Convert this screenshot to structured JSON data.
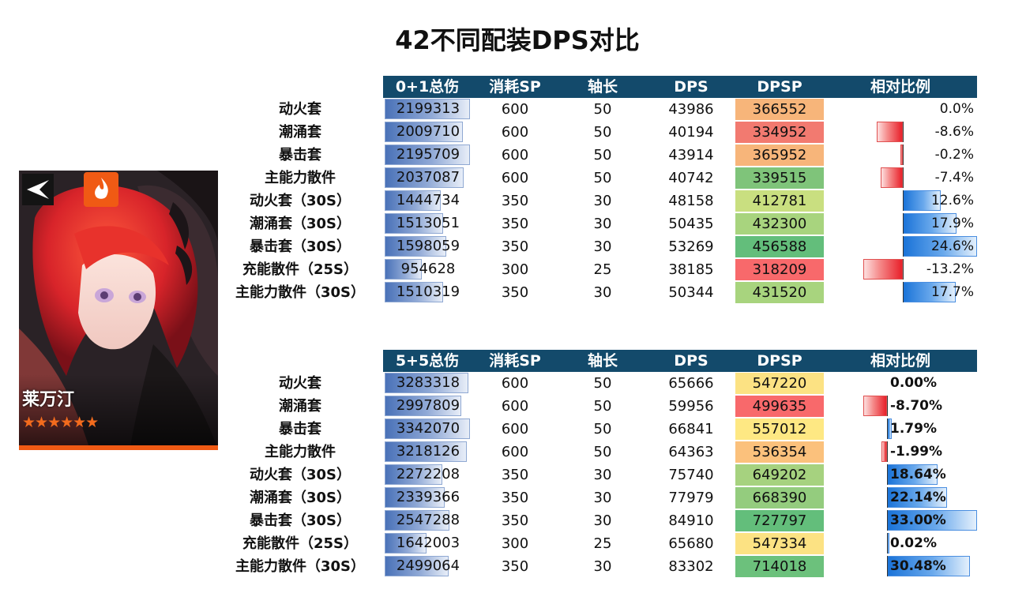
{
  "title": "42不同配装DPS对比",
  "character": {
    "name": "莱万汀",
    "stars": "★★★★★★"
  },
  "colors": {
    "header_bg": "#134a6b",
    "card_accent": "#f05a14"
  },
  "icons": {
    "class": "vanguard-class-icon",
    "element": "fire-element-icon"
  },
  "chart_data": [
    {
      "type": "table",
      "columns": [
        "0+1总伤",
        "消耗SP",
        "轴长",
        "DPS",
        "DPSP",
        "相对比例"
      ],
      "rows": [
        {
          "label": "动火套",
          "total": "2199313",
          "sp": "600",
          "axis": "50",
          "dps": "43986",
          "dpsp": "366552",
          "ratio": "0.0%",
          "ratio_value": 0.0,
          "dpsp_color": "#f7b57a"
        },
        {
          "label": "潮涌套",
          "total": "2009710",
          "sp": "600",
          "axis": "50",
          "dps": "40194",
          "dpsp": "334952",
          "ratio": "-8.6%",
          "ratio_value": -8.6,
          "dpsp_color": "#f27a70"
        },
        {
          "label": "暴击套",
          "total": "2195709",
          "sp": "600",
          "axis": "50",
          "dps": "43914",
          "dpsp": "365952",
          "ratio": "-0.2%",
          "ratio_value": -0.2,
          "dpsp_color": "#f7b57a"
        },
        {
          "label": "主能力散件",
          "total": "2037087",
          "sp": "600",
          "axis": "50",
          "dps": "40742",
          "dpsp": "339515",
          "ratio": "-7.4%",
          "ratio_value": -7.4,
          "dpsp_color": "#7fc47a"
        },
        {
          "label": "动火套（30S）",
          "total": "1444734",
          "sp": "350",
          "axis": "30",
          "dps": "48158",
          "dpsp": "412781",
          "ratio": "12.6%",
          "ratio_value": 12.6,
          "dpsp_color": "#c9df80"
        },
        {
          "label": "潮涌套（30S）",
          "total": "1513051",
          "sp": "350",
          "axis": "30",
          "dps": "50435",
          "dpsp": "432300",
          "ratio": "17.9%",
          "ratio_value": 17.9,
          "dpsp_color": "#a8d47e"
        },
        {
          "label": "暴击套（30S）",
          "total": "1598059",
          "sp": "350",
          "axis": "30",
          "dps": "53269",
          "dpsp": "456588",
          "ratio": "24.6%",
          "ratio_value": 24.6,
          "dpsp_color": "#63be7b"
        },
        {
          "label": "充能散件（25S）",
          "total": "954628",
          "sp": "300",
          "axis": "25",
          "dps": "38185",
          "dpsp": "318209",
          "ratio": "-13.2%",
          "ratio_value": -13.2,
          "dpsp_color": "#f8696b"
        },
        {
          "label": "主能力散件（30S）",
          "total": "1510319",
          "sp": "350",
          "axis": "30",
          "dps": "50344",
          "dpsp": "431520",
          "ratio": "17.7%",
          "ratio_value": 17.7,
          "dpsp_color": "#a8d47e"
        }
      ]
    },
    {
      "type": "table",
      "columns": [
        "5+5总伤",
        "消耗SP",
        "轴长",
        "DPS",
        "DPSP",
        "相对比例"
      ],
      "rows": [
        {
          "label": "动火套",
          "total": "3283318",
          "sp": "600",
          "axis": "50",
          "dps": "65666",
          "dpsp": "547220",
          "ratio": "0.00%",
          "ratio_value": 0.0,
          "dpsp_color": "#fce283"
        },
        {
          "label": "潮涌套",
          "total": "2997809",
          "sp": "600",
          "axis": "50",
          "dps": "59956",
          "dpsp": "499635",
          "ratio": "-8.70%",
          "ratio_value": -8.7,
          "dpsp_color": "#f8696b"
        },
        {
          "label": "暴击套",
          "total": "3342070",
          "sp": "600",
          "axis": "50",
          "dps": "66841",
          "dpsp": "557012",
          "ratio": "1.79%",
          "ratio_value": 1.79,
          "dpsp_color": "#fee883"
        },
        {
          "label": "主能力散件",
          "total": "3218126",
          "sp": "600",
          "axis": "50",
          "dps": "64363",
          "dpsp": "536354",
          "ratio": "-1.99%",
          "ratio_value": -1.99,
          "dpsp_color": "#fbc17c"
        },
        {
          "label": "动火套（30S）",
          "total": "2272208",
          "sp": "350",
          "axis": "30",
          "dps": "75740",
          "dpsp": "649202",
          "ratio": "18.64%",
          "ratio_value": 18.64,
          "dpsp_color": "#a6d27f"
        },
        {
          "label": "潮涌套（30S）",
          "total": "2339366",
          "sp": "350",
          "axis": "30",
          "dps": "77979",
          "dpsp": "668390",
          "ratio": "22.14%",
          "ratio_value": 22.14,
          "dpsp_color": "#94cc7e"
        },
        {
          "label": "暴击套（30S）",
          "total": "2547288",
          "sp": "350",
          "axis": "30",
          "dps": "84910",
          "dpsp": "727797",
          "ratio": "33.00%",
          "ratio_value": 33.0,
          "dpsp_color": "#63be7b"
        },
        {
          "label": "充能散件（25S）",
          "total": "1642003",
          "sp": "300",
          "axis": "25",
          "dps": "65680",
          "dpsp": "547334",
          "ratio": "0.02%",
          "ratio_value": 0.02,
          "dpsp_color": "#fce283"
        },
        {
          "label": "主能力散件（30S）",
          "total": "2499064",
          "sp": "350",
          "axis": "30",
          "dps": "83302",
          "dpsp": "714018",
          "ratio": "30.48%",
          "ratio_value": 30.48,
          "dpsp_color": "#6cc17c"
        }
      ]
    }
  ]
}
